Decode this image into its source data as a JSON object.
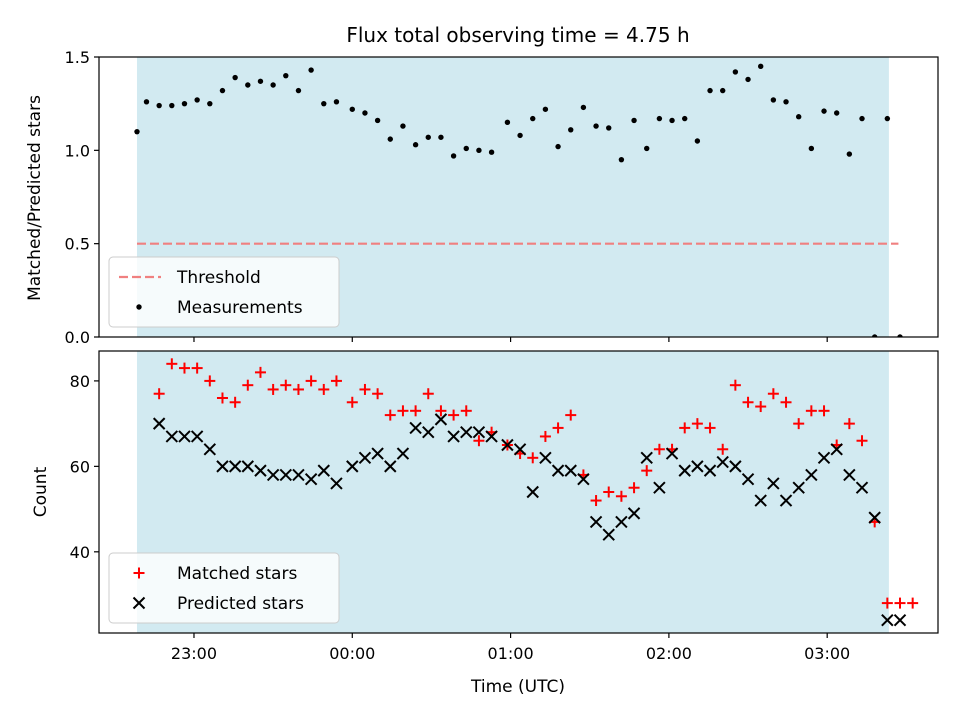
{
  "chart_data": [
    {
      "type": "scatter",
      "title": "Flux total observing time = 4.75 h",
      "ylabel": "Matched/Predicted stars",
      "xlabel": "",
      "xlim": [
        -0.6,
        4.7
      ],
      "ylim": [
        0.0,
        1.5
      ],
      "yticks": [
        {
          "v": 0.0,
          "label": "0.0"
        },
        {
          "v": 0.5,
          "label": "0.5"
        },
        {
          "v": 1.0,
          "label": "1.0"
        },
        {
          "v": 1.5,
          "label": "1.5"
        }
      ],
      "shaded_span": [
        -0.36,
        4.39
      ],
      "shade_color": "#add8e6",
      "legend_position": "lower-left",
      "threshold": {
        "name": "Threshold",
        "y": 0.5,
        "x_range": [
          -0.36,
          4.45
        ],
        "color": "#f08080"
      },
      "series": [
        {
          "name": "Measurements",
          "marker": "dot",
          "color": "#000000",
          "x": [
            -0.36,
            -0.3,
            -0.22,
            -0.14,
            -0.06,
            0.02,
            0.1,
            0.18,
            0.26,
            0.34,
            0.42,
            0.5,
            0.58,
            0.66,
            0.74,
            0.82,
            0.9,
            1.0,
            1.08,
            1.16,
            1.24,
            1.32,
            1.4,
            1.48,
            1.56,
            1.64,
            1.72,
            1.8,
            1.88,
            1.98,
            2.06,
            2.14,
            2.22,
            2.3,
            2.38,
            2.46,
            2.54,
            2.62,
            2.7,
            2.78,
            2.86,
            2.94,
            3.02,
            3.1,
            3.18,
            3.26,
            3.34,
            3.42,
            3.5,
            3.58,
            3.66,
            3.74,
            3.82,
            3.9,
            3.98,
            4.06,
            4.14,
            4.22,
            4.3,
            4.38,
            4.46
          ],
          "y": [
            1.1,
            1.26,
            1.24,
            1.24,
            1.25,
            1.27,
            1.25,
            1.32,
            1.39,
            1.35,
            1.37,
            1.35,
            1.4,
            1.32,
            1.43,
            1.25,
            1.26,
            1.22,
            1.2,
            1.16,
            1.06,
            1.13,
            1.03,
            1.07,
            1.07,
            0.97,
            1.01,
            1.0,
            0.99,
            1.15,
            1.08,
            1.17,
            1.22,
            1.02,
            1.11,
            1.23,
            1.13,
            1.12,
            0.95,
            1.16,
            1.01,
            1.17,
            1.16,
            1.17,
            1.05,
            1.32,
            1.32,
            1.42,
            1.38,
            1.45,
            1.27,
            1.26,
            1.18,
            1.01,
            1.21,
            1.2,
            0.98,
            1.17,
            0.0,
            1.17,
            0.0
          ]
        }
      ]
    },
    {
      "type": "scatter",
      "title": "",
      "ylabel": "Count",
      "xlabel": "Time (UTC)",
      "xlim": [
        -0.6,
        4.7
      ],
      "ylim": [
        21,
        87
      ],
      "yticks": [
        {
          "v": 40,
          "label": "40"
        },
        {
          "v": 60,
          "label": "60"
        },
        {
          "v": 80,
          "label": "80"
        }
      ],
      "xticks": [
        {
          "v": 0,
          "label": "23:00"
        },
        {
          "v": 1,
          "label": "00:00"
        },
        {
          "v": 2,
          "label": "01:00"
        },
        {
          "v": 3,
          "label": "02:00"
        },
        {
          "v": 4,
          "label": "03:00"
        }
      ],
      "shaded_span": [
        -0.36,
        4.39
      ],
      "shade_color": "#add8e6",
      "legend_position": "lower-left",
      "series": [
        {
          "name": "Matched stars",
          "marker": "plus",
          "color": "#ff0000",
          "x": [
            -0.22,
            -0.14,
            -0.06,
            0.02,
            0.1,
            0.18,
            0.26,
            0.34,
            0.42,
            0.5,
            0.58,
            0.66,
            0.74,
            0.82,
            0.9,
            1.0,
            1.08,
            1.16,
            1.24,
            1.32,
            1.4,
            1.48,
            1.56,
            1.64,
            1.72,
            1.8,
            1.88,
            1.98,
            2.06,
            2.14,
            2.22,
            2.3,
            2.38,
            2.46,
            2.54,
            2.62,
            2.7,
            2.78,
            2.86,
            2.94,
            3.02,
            3.1,
            3.18,
            3.26,
            3.34,
            3.42,
            3.5,
            3.58,
            3.66,
            3.74,
            3.82,
            3.9,
            3.98,
            4.06,
            4.14,
            4.22,
            4.3,
            4.38,
            4.46,
            4.54
          ],
          "y": [
            77,
            84,
            83,
            83,
            80,
            76,
            75,
            79,
            82,
            78,
            79,
            78,
            80,
            78,
            80,
            75,
            78,
            77,
            72,
            73,
            73,
            77,
            73,
            72,
            73,
            66,
            68,
            65,
            63,
            62,
            67,
            69,
            72,
            58,
            52,
            54,
            53,
            55,
            59,
            64,
            64,
            69,
            70,
            69,
            64,
            79,
            75,
            74,
            77,
            75,
            70,
            73,
            73,
            65,
            70,
            66,
            47,
            28,
            28,
            28
          ]
        },
        {
          "name": "Predicted stars",
          "marker": "x",
          "color": "#000000",
          "x": [
            -0.22,
            -0.14,
            -0.06,
            0.02,
            0.1,
            0.18,
            0.26,
            0.34,
            0.42,
            0.5,
            0.58,
            0.66,
            0.74,
            0.82,
            0.9,
            1.0,
            1.08,
            1.16,
            1.24,
            1.32,
            1.4,
            1.48,
            1.56,
            1.64,
            1.72,
            1.8,
            1.88,
            1.98,
            2.06,
            2.14,
            2.22,
            2.3,
            2.38,
            2.46,
            2.54,
            2.62,
            2.7,
            2.78,
            2.86,
            2.94,
            3.02,
            3.1,
            3.18,
            3.26,
            3.34,
            3.42,
            3.5,
            3.58,
            3.66,
            3.74,
            3.82,
            3.9,
            3.98,
            4.06,
            4.14,
            4.22,
            4.3,
            4.38,
            4.46
          ],
          "y": [
            70,
            67,
            67,
            67,
            64,
            60,
            60,
            60,
            59,
            58,
            58,
            58,
            57,
            59,
            56,
            60,
            62,
            63,
            60,
            63,
            69,
            68,
            71,
            67,
            68,
            68,
            67,
            65,
            64,
            54,
            62,
            59,
            59,
            57,
            47,
            44,
            47,
            49,
            62,
            55,
            63,
            59,
            60,
            59,
            61,
            60,
            57,
            52,
            56,
            52,
            55,
            58,
            62,
            64,
            58,
            55,
            48,
            24,
            24
          ]
        }
      ]
    }
  ]
}
